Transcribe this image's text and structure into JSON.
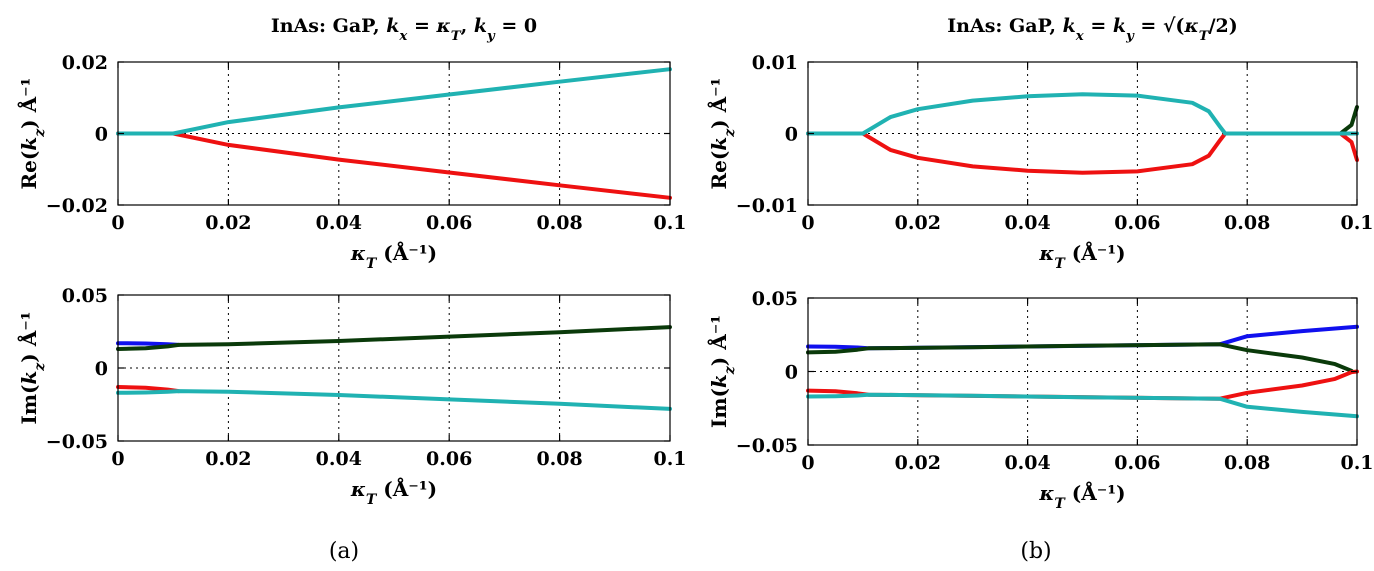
{
  "figure_labels": [
    "(a)",
    "(b)"
  ],
  "chart_data": [
    {
      "id": "a-re",
      "type": "line",
      "title": "InAs: GaP, k_x = κ_T, k_y = 0",
      "title_parts": {
        "prefix": "InAs: GaP, ",
        "math": "kx = κT, ky = 0"
      },
      "xlabel": "κT (Å⁻¹)",
      "ylabel": "Re(kz) Å⁻¹",
      "xlim": [
        0,
        0.1
      ],
      "ylim": [
        -0.02,
        0.02
      ],
      "xticks": [
        0,
        0.02,
        0.04,
        0.06,
        0.08,
        0.1
      ],
      "xtick_labels": [
        "0",
        "0.02",
        "0.04",
        "0.06",
        "0.08",
        "0.1"
      ],
      "yticks": [
        -0.02,
        0,
        0.02
      ],
      "ytick_labels": [
        "−0.02",
        "0",
        "0.02"
      ],
      "grid": true,
      "series": [
        {
          "name": "red",
          "color": "#ee1111",
          "points": [
            [
              0,
              0
            ],
            [
              0.01,
              0
            ],
            [
              0.02,
              -0.0032
            ],
            [
              0.04,
              -0.0073
            ],
            [
              0.06,
              -0.0109
            ],
            [
              0.08,
              -0.0145
            ],
            [
              0.1,
              -0.018
            ]
          ]
        },
        {
          "name": "cyan",
          "color": "#20b2b2",
          "points": [
            [
              0,
              0
            ],
            [
              0.01,
              0
            ],
            [
              0.02,
              0.0032
            ],
            [
              0.04,
              0.0073
            ],
            [
              0.06,
              0.0109
            ],
            [
              0.08,
              0.0145
            ],
            [
              0.1,
              0.018
            ]
          ]
        }
      ]
    },
    {
      "id": "a-im",
      "type": "line",
      "title": "",
      "xlabel": "κT (Å⁻¹)",
      "ylabel": "Im(kz) Å⁻¹",
      "xlim": [
        0,
        0.1
      ],
      "ylim": [
        -0.05,
        0.05
      ],
      "xticks": [
        0,
        0.02,
        0.04,
        0.06,
        0.08,
        0.1
      ],
      "xtick_labels": [
        "0",
        "0.02",
        "0.04",
        "0.06",
        "0.08",
        "0.1"
      ],
      "yticks": [
        -0.05,
        0,
        0.05
      ],
      "ytick_labels": [
        "−0.05",
        "0",
        "0.05"
      ],
      "grid": true,
      "series": [
        {
          "name": "blue",
          "color": "#1010ee",
          "points": [
            [
              0,
              0.017
            ],
            [
              0.005,
              0.0168
            ],
            [
              0.009,
              0.0163
            ],
            [
              0.011,
              0.0158
            ]
          ]
        },
        {
          "name": "dark-green",
          "color": "#0a3a0a",
          "points": [
            [
              0,
              0.013
            ],
            [
              0.005,
              0.0135
            ],
            [
              0.009,
              0.0148
            ],
            [
              0.011,
              0.0158
            ],
            [
              0.02,
              0.0162
            ],
            [
              0.04,
              0.0185
            ],
            [
              0.06,
              0.0215
            ],
            [
              0.08,
              0.0245
            ],
            [
              0.1,
              0.028
            ]
          ]
        },
        {
          "name": "red",
          "color": "#ee1111",
          "points": [
            [
              0,
              -0.013
            ],
            [
              0.005,
              -0.0135
            ],
            [
              0.009,
              -0.0148
            ],
            [
              0.011,
              -0.0158
            ]
          ]
        },
        {
          "name": "cyan",
          "color": "#20b2b2",
          "points": [
            [
              0,
              -0.017
            ],
            [
              0.005,
              -0.0168
            ],
            [
              0.009,
              -0.0163
            ],
            [
              0.011,
              -0.0158
            ],
            [
              0.02,
              -0.0162
            ],
            [
              0.04,
              -0.0185
            ],
            [
              0.06,
              -0.0215
            ],
            [
              0.08,
              -0.0245
            ],
            [
              0.1,
              -0.028
            ]
          ]
        }
      ]
    },
    {
      "id": "b-re",
      "type": "line",
      "title": "InAs: GaP, k_x = k_y = √(κ_T/2)",
      "title_parts": {
        "prefix": "InAs: GaP, ",
        "math": "kx = ky = √(κT/2)"
      },
      "xlabel": "κT (Å⁻¹)",
      "ylabel": "Re(kz) Å⁻¹",
      "xlim": [
        0,
        0.1
      ],
      "ylim": [
        -0.01,
        0.01
      ],
      "xticks": [
        0,
        0.02,
        0.04,
        0.06,
        0.08,
        0.1
      ],
      "xtick_labels": [
        "0",
        "0.02",
        "0.04",
        "0.06",
        "0.08",
        "0.1"
      ],
      "yticks": [
        -0.01,
        0,
        0.01
      ],
      "ytick_labels": [
        "−0.01",
        "0",
        "0.01"
      ],
      "grid": true,
      "series": [
        {
          "name": "dark-green",
          "color": "#0a3a0a",
          "points": [
            [
              0.097,
              0
            ],
            [
              0.099,
              0.0012
            ],
            [
              0.1,
              0.0037
            ]
          ]
        },
        {
          "name": "red",
          "color": "#ee1111",
          "points": [
            [
              0,
              0
            ],
            [
              0.01,
              0
            ],
            [
              0.015,
              -0.0023
            ],
            [
              0.02,
              -0.0034
            ],
            [
              0.03,
              -0.0046
            ],
            [
              0.04,
              -0.0052
            ],
            [
              0.05,
              -0.0055
            ],
            [
              0.06,
              -0.0053
            ],
            [
              0.07,
              -0.0043
            ],
            [
              0.073,
              -0.0031
            ],
            [
              0.075,
              -0.001
            ],
            [
              0.076,
              0
            ],
            [
              0.097,
              0
            ],
            [
              0.099,
              -0.0012
            ],
            [
              0.1,
              -0.0037
            ]
          ]
        },
        {
          "name": "cyan",
          "color": "#20b2b2",
          "points": [
            [
              0,
              0
            ],
            [
              0.01,
              0
            ],
            [
              0.015,
              0.0023
            ],
            [
              0.02,
              0.0034
            ],
            [
              0.03,
              0.0046
            ],
            [
              0.04,
              0.0052
            ],
            [
              0.05,
              0.0055
            ],
            [
              0.06,
              0.0053
            ],
            [
              0.07,
              0.0043
            ],
            [
              0.073,
              0.0031
            ],
            [
              0.075,
              0.001
            ],
            [
              0.076,
              0
            ],
            [
              0.1,
              0
            ]
          ]
        }
      ]
    },
    {
      "id": "b-im",
      "type": "line",
      "title": "",
      "xlabel": "κT (Å⁻¹)",
      "ylabel": "Im(kz) Å⁻¹",
      "xlim": [
        0,
        0.1
      ],
      "ylim": [
        -0.05,
        0.05
      ],
      "xticks": [
        0,
        0.02,
        0.04,
        0.06,
        0.08,
        0.1
      ],
      "xtick_labels": [
        "0",
        "0.02",
        "0.04",
        "0.06",
        "0.08",
        "0.1"
      ],
      "yticks": [
        -0.05,
        0,
        0.05
      ],
      "ytick_labels": [
        "−0.05",
        "0",
        "0.05"
      ],
      "grid": true,
      "series": [
        {
          "name": "blue",
          "color": "#1010ee",
          "points": [
            [
              0,
              0.017
            ],
            [
              0.005,
              0.0168
            ],
            [
              0.009,
              0.0163
            ],
            [
              0.011,
              0.0158
            ],
            [
              0.075,
              0.0185
            ],
            [
              0.08,
              0.024
            ],
            [
              0.09,
              0.0275
            ],
            [
              0.1,
              0.0305
            ]
          ]
        },
        {
          "name": "dark-green",
          "color": "#0a3a0a",
          "points": [
            [
              0,
              0.013
            ],
            [
              0.005,
              0.0135
            ],
            [
              0.009,
              0.0148
            ],
            [
              0.011,
              0.0158
            ],
            [
              0.03,
              0.0165
            ],
            [
              0.05,
              0.0175
            ],
            [
              0.075,
              0.0185
            ],
            [
              0.08,
              0.0145
            ],
            [
              0.09,
              0.0095
            ],
            [
              0.096,
              0.005
            ],
            [
              0.099,
              0.0005
            ]
          ]
        },
        {
          "name": "red",
          "color": "#ee1111",
          "points": [
            [
              0,
              -0.013
            ],
            [
              0.005,
              -0.0135
            ],
            [
              0.009,
              -0.0148
            ],
            [
              0.011,
              -0.0158
            ],
            [
              0.075,
              -0.0185
            ],
            [
              0.08,
              -0.0145
            ],
            [
              0.09,
              -0.0095
            ],
            [
              0.096,
              -0.005
            ],
            [
              0.099,
              -0.0005
            ],
            [
              0.1,
              0
            ]
          ]
        },
        {
          "name": "cyan",
          "color": "#20b2b2",
          "points": [
            [
              0,
              -0.017
            ],
            [
              0.005,
              -0.0168
            ],
            [
              0.009,
              -0.0163
            ],
            [
              0.011,
              -0.0158
            ],
            [
              0.03,
              -0.0165
            ],
            [
              0.05,
              -0.0175
            ],
            [
              0.075,
              -0.0185
            ],
            [
              0.08,
              -0.024
            ],
            [
              0.09,
              -0.0275
            ],
            [
              0.1,
              -0.0305
            ]
          ]
        }
      ]
    }
  ]
}
